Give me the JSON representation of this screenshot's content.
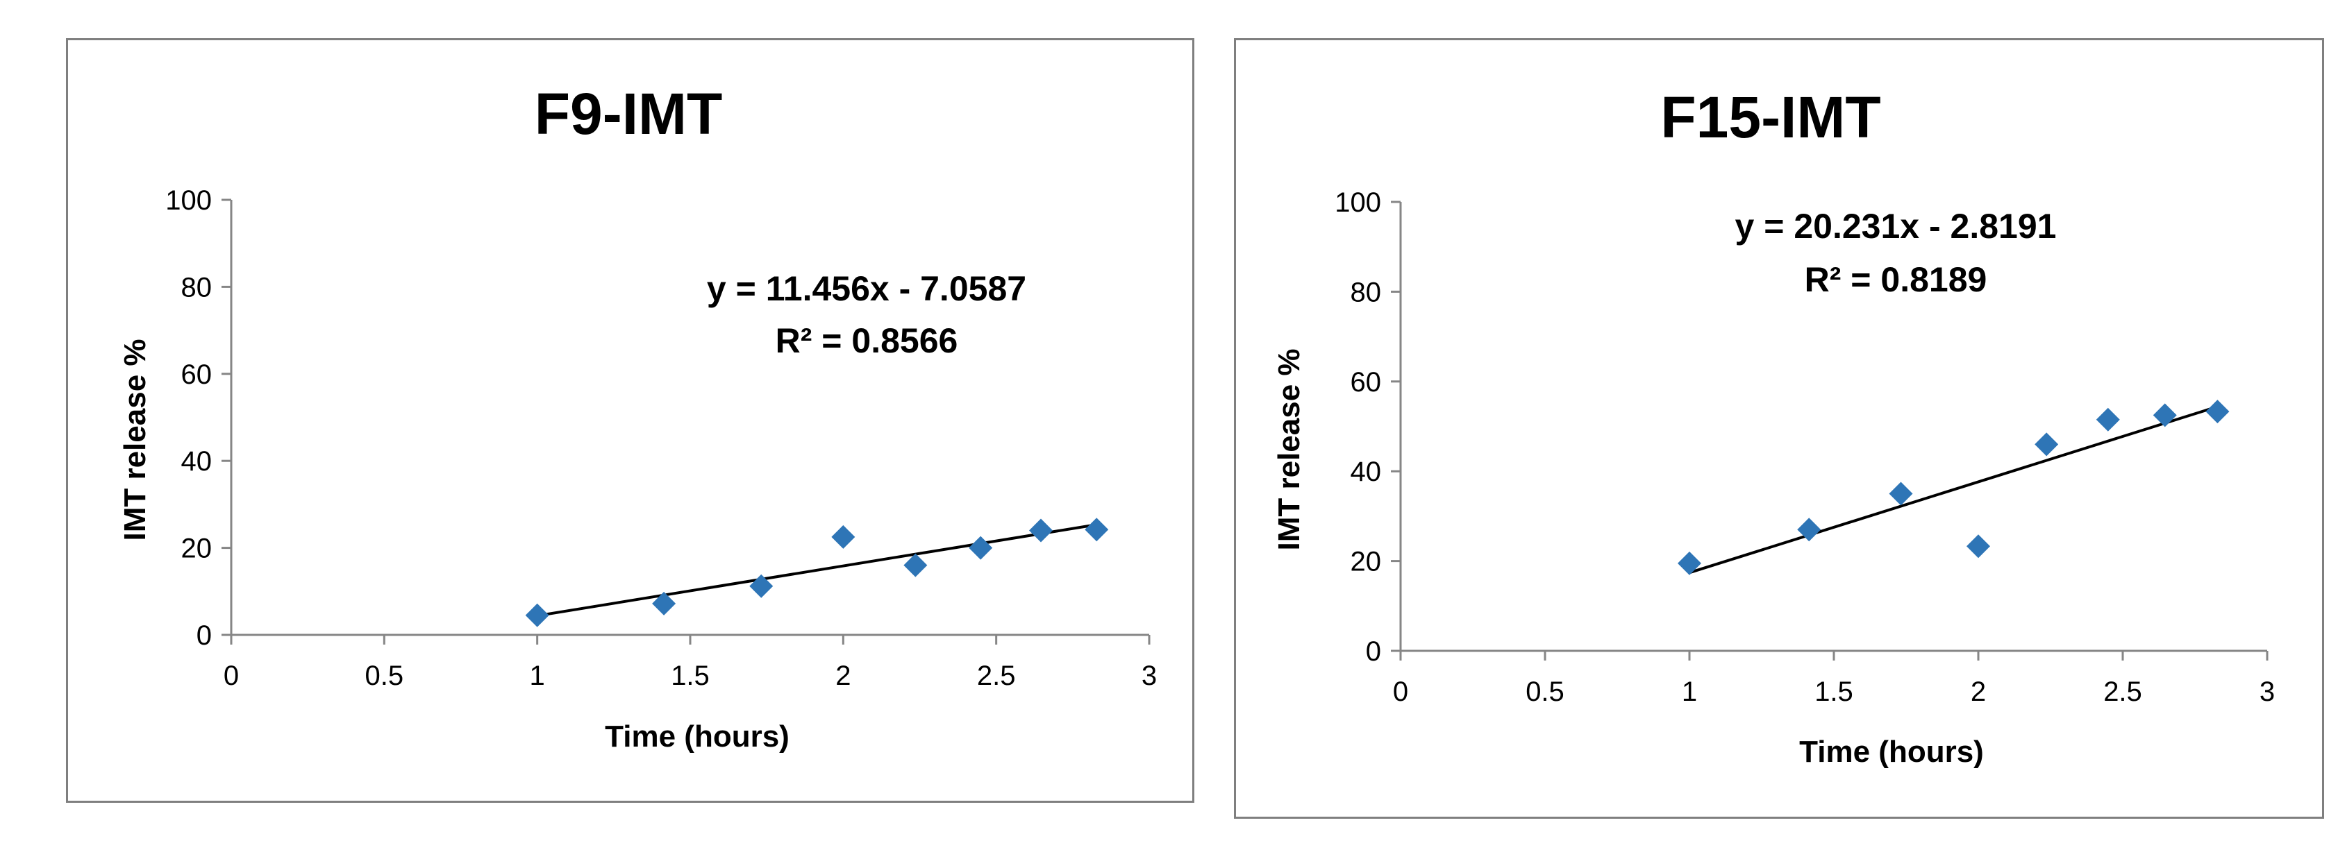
{
  "chart_data": [
    {
      "type": "scatter",
      "title": "F9-IMT",
      "xlabel": "Time (hours)",
      "ylabel": "IMT release %",
      "xlim": [
        0,
        3
      ],
      "ylim": [
        0,
        100
      ],
      "x_ticks": [
        0,
        0.5,
        1,
        1.5,
        2,
        2.5,
        3
      ],
      "y_ticks": [
        0,
        20,
        40,
        60,
        80,
        100
      ],
      "x_tick_labels": [
        "0",
        "0.5",
        "1",
        "1.5",
        "2",
        "2.5",
        "3"
      ],
      "y_tick_labels": [
        "0",
        "20",
        "40",
        "60",
        "80",
        "100"
      ],
      "series": [
        {
          "name": "IMT release",
          "color": "#2e75b6",
          "marker": "diamond",
          "x": [
            1.0,
            1.414,
            1.732,
            2.0,
            2.236,
            2.449,
            2.646,
            2.828
          ],
          "y": [
            4.5,
            7.2,
            11.2,
            22.5,
            16.0,
            20.0,
            24.0,
            24.2
          ]
        }
      ],
      "trendline": {
        "type": "linear",
        "slope": 11.456,
        "intercept": -7.0587,
        "x_range": [
          1.0,
          2.828
        ],
        "equation_label": "y = 11.456x - 7.0587",
        "r2_label": "R² = 0.8566",
        "color": "#000000"
      },
      "grid": false,
      "legend": "none"
    },
    {
      "type": "scatter",
      "title": "F15-IMT",
      "xlabel": "Time (hours)",
      "ylabel": "IMT release %",
      "xlim": [
        0,
        3
      ],
      "ylim": [
        0,
        100
      ],
      "x_ticks": [
        0,
        0.5,
        1,
        1.5,
        2,
        2.5,
        3
      ],
      "y_ticks": [
        0,
        20,
        40,
        60,
        80,
        100
      ],
      "x_tick_labels": [
        "0",
        "0.5",
        "1",
        "1.5",
        "2",
        "2.5",
        "3"
      ],
      "y_tick_labels": [
        "0",
        "20",
        "40",
        "60",
        "80",
        "100"
      ],
      "series": [
        {
          "name": "IMT release",
          "color": "#2e75b6",
          "marker": "diamond",
          "x": [
            1.0,
            1.414,
            1.732,
            2.0,
            2.236,
            2.449,
            2.646,
            2.828
          ],
          "y": [
            19.5,
            27.0,
            35.0,
            23.3,
            46.0,
            51.5,
            52.5,
            53.3
          ]
        }
      ],
      "trendline": {
        "type": "linear",
        "slope": 20.231,
        "intercept": -2.8191,
        "x_range": [
          1.0,
          2.828
        ],
        "equation_label": "y = 20.231x - 2.8191",
        "r2_label": "R² = 0.8189",
        "color": "#000000"
      },
      "grid": false,
      "legend": "none"
    }
  ]
}
